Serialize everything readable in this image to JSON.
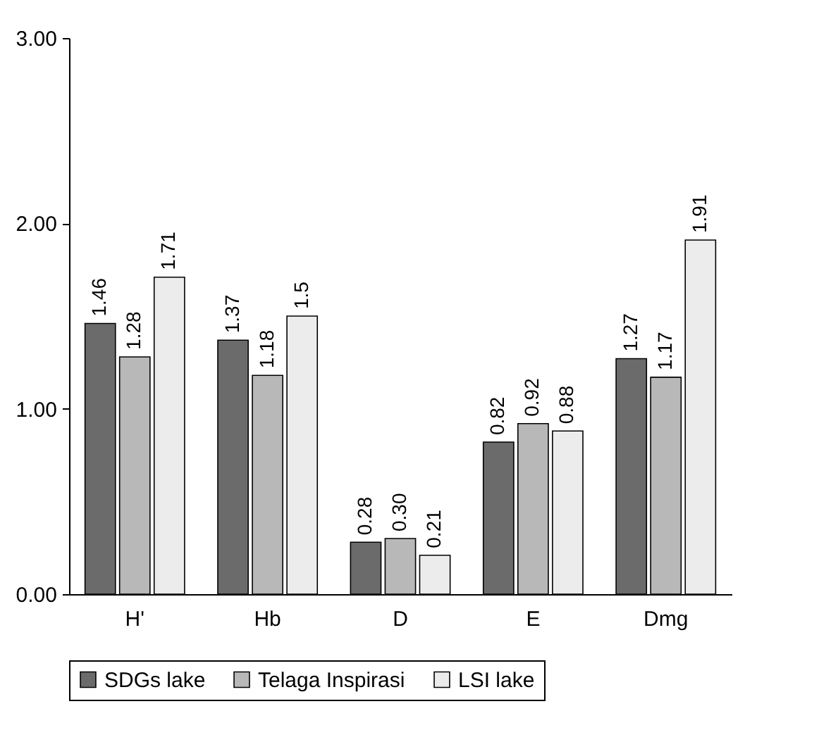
{
  "chart_data": {
    "type": "bar",
    "categories": [
      "H'",
      "Hb",
      "D",
      "E",
      "Dmg"
    ],
    "series": [
      {
        "name": "SDGs lake",
        "color": "#6b6b6b",
        "values": [
          1.46,
          1.37,
          0.28,
          0.82,
          1.27
        ],
        "value_labels": [
          "1.46",
          "1.37",
          "0.28",
          "0.82",
          "1.27"
        ]
      },
      {
        "name": "Telaga Inspirasi",
        "color": "#b8b8b8",
        "values": [
          1.28,
          1.18,
          0.3,
          0.92,
          1.17
        ],
        "value_labels": [
          "1.28",
          "1.18",
          "0.30",
          "0.92",
          "1.17"
        ]
      },
      {
        "name": "LSI lake",
        "color": "#ececec",
        "values": [
          1.71,
          1.5,
          0.21,
          0.88,
          1.91
        ],
        "value_labels": [
          "1.71",
          "1.5",
          "0.21",
          "0.88",
          "1.91"
        ]
      }
    ],
    "ylim": [
      0,
      3
    ],
    "yticks": [
      {
        "value": 0,
        "label": "0.00"
      },
      {
        "value": 1,
        "label": "1.00"
      },
      {
        "value": 2,
        "label": "2.00"
      },
      {
        "value": 3,
        "label": "3.00"
      }
    ],
    "legend": "bottom"
  }
}
